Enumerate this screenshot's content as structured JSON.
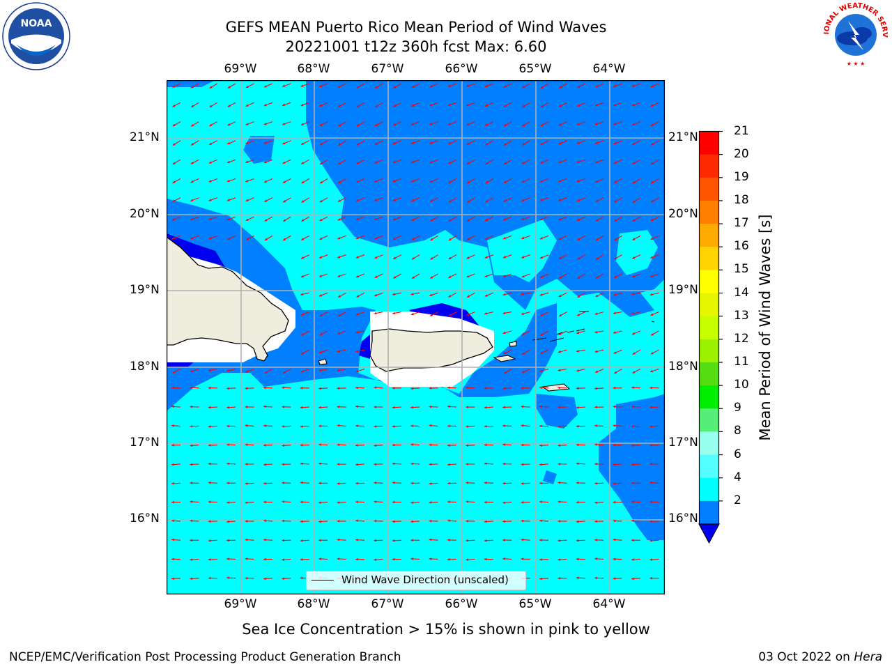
{
  "title": {
    "line1": "GEFS MEAN Puerto Rico Mean Period of Wind Waves",
    "line2": "20221001 t12z 360h fcst   Max: 6.60"
  },
  "map": {
    "lon_labels": [
      "69°W",
      "68°W",
      "67°W",
      "66°W",
      "65°W",
      "64°W"
    ],
    "lat_labels": [
      "21°N",
      "20°N",
      "19°N",
      "18°N",
      "17°N",
      "16°N"
    ],
    "legend_label": "Wind Wave Direction (unscaled)",
    "colors": {
      "ocean_light": "#00ffff",
      "ocean_mid": "#0080ff",
      "ocean_dark": "#0000ee",
      "land": "#efedde",
      "arrow": "#ff0000",
      "grid": "#b0b0b0"
    }
  },
  "colorbar": {
    "label": "Mean Period of Wind Waves [s]",
    "ticks": [
      "21",
      "20",
      "19",
      "18",
      "17",
      "16",
      "15",
      "14",
      "13",
      "12",
      "11",
      "10",
      "9",
      "8",
      "6",
      "4",
      "2"
    ],
    "colors_top_to_bottom": [
      "#ff0000",
      "#ff2a00",
      "#ff5500",
      "#ff8000",
      "#ffaa00",
      "#ffd400",
      "#ffff00",
      "#e6f500",
      "#c8ff00",
      "#9cf000",
      "#55dd11",
      "#00ee00",
      "#55ee77",
      "#99ffee",
      "#55ffff",
      "#00ffff",
      "#0080ff"
    ],
    "underflow_color": "#0000ee"
  },
  "subnote": "Sea Ice Concentration > 15% is shown in pink to yellow",
  "footer": {
    "left": "NCEP/EMC/Verification Post Processing Product Generation Branch",
    "right_date": "03 Oct 2022 on ",
    "right_host": "Hera"
  },
  "logos": {
    "noaa_text": "NOAA",
    "nws_text": "NATIONAL WEATHER SERVICE"
  }
}
